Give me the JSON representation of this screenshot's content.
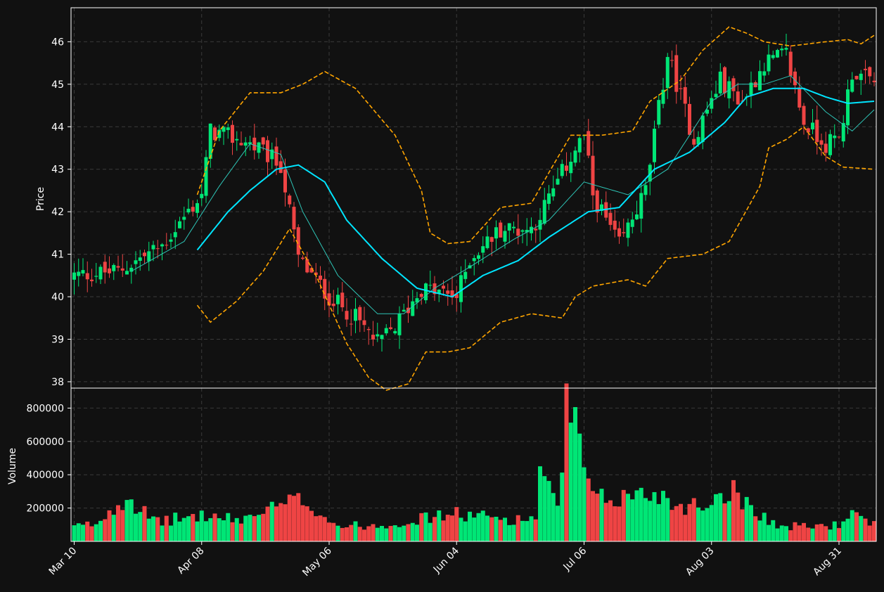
{
  "chart_data": {
    "type": "candlestick",
    "colors": {
      "background": "#111111",
      "up": "#00e676",
      "down": "#ef4444",
      "grid": "#3a3a3a",
      "axis": "#ffffff",
      "ma_fast": "#2ec4b6",
      "ma_slow": "#00e5ff",
      "bollinger": "#ffa500"
    },
    "price_panel": {
      "ylabel": "Price",
      "ylim": [
        37.85,
        46.8
      ],
      "yticks": [
        38,
        39,
        40,
        41,
        42,
        43,
        44,
        45,
        46
      ],
      "grid": true
    },
    "volume_panel": {
      "ylabel": "Volume",
      "ylim": [
        0,
        920000
      ],
      "yticks": [
        200000,
        400000,
        600000,
        800000
      ],
      "grid": true
    },
    "x_axis": {
      "tick_labels": [
        "Mar 10",
        "Apr 08",
        "May 06",
        "Jun 04",
        "Jul 06",
        "Aug 03",
        "Aug 31"
      ],
      "tick_indices": [
        0,
        29,
        58,
        87,
        116,
        145,
        174
      ],
      "label_rotation": 45,
      "grid": true
    },
    "series_count": 183,
    "key_points": {
      "close": [
        [
          0,
          40.5
        ],
        [
          10,
          40.6
        ],
        [
          20,
          41.2
        ],
        [
          29,
          42.4
        ],
        [
          31,
          43.9
        ],
        [
          40,
          43.6
        ],
        [
          47,
          43.1
        ],
        [
          51,
          40.9
        ],
        [
          58,
          40.0
        ],
        [
          64,
          39.5
        ],
        [
          69,
          38.9
        ],
        [
          73,
          39.3
        ],
        [
          79,
          40.2
        ],
        [
          87,
          40.0
        ],
        [
          90,
          40.9
        ],
        [
          97,
          41.6
        ],
        [
          104,
          41.6
        ],
        [
          108,
          42.3
        ],
        [
          113,
          43.3
        ],
        [
          116,
          43.8
        ],
        [
          118,
          42.4
        ],
        [
          124,
          41.2
        ],
        [
          130,
          42.5
        ],
        [
          135,
          45.7
        ],
        [
          141,
          43.7
        ],
        [
          147,
          45.1
        ],
        [
          152,
          44.6
        ],
        [
          157,
          45.5
        ],
        [
          162,
          45.7
        ],
        [
          166,
          44.1
        ],
        [
          171,
          43.6
        ],
        [
          174,
          43.7
        ],
        [
          177,
          45.3
        ],
        [
          182,
          45.0
        ]
      ],
      "volume": [
        [
          0,
          90000
        ],
        [
          5,
          110000
        ],
        [
          12,
          290000
        ],
        [
          18,
          120000
        ],
        [
          29,
          160000
        ],
        [
          37,
          130000
        ],
        [
          52,
          260000
        ],
        [
          60,
          95000
        ],
        [
          70,
          100000
        ],
        [
          86,
          170000
        ],
        [
          102,
          130000
        ],
        [
          105,
          160000
        ],
        [
          106,
          430000
        ],
        [
          110,
          180000
        ],
        [
          112,
          870000
        ],
        [
          118,
          250000
        ],
        [
          133,
          300000
        ],
        [
          136,
          230000
        ],
        [
          143,
          220000
        ],
        [
          149,
          330000
        ],
        [
          160,
          90000
        ],
        [
          174,
          100000
        ],
        [
          176,
          170000
        ],
        [
          182,
          100000
        ]
      ],
      "ma_fast": [
        [
          13,
          40.6
        ],
        [
          25,
          41.3
        ],
        [
          33,
          42.6
        ],
        [
          40,
          43.6
        ],
        [
          47,
          43.35
        ],
        [
          52,
          42.0
        ],
        [
          60,
          40.5
        ],
        [
          69,
          39.6
        ],
        [
          75,
          39.6
        ],
        [
          82,
          40.2
        ],
        [
          90,
          40.7
        ],
        [
          100,
          41.35
        ],
        [
          108,
          41.8
        ],
        [
          116,
          42.7
        ],
        [
          126,
          42.4
        ],
        [
          135,
          43.0
        ],
        [
          145,
          44.6
        ],
        [
          151,
          45.0
        ],
        [
          157,
          45.0
        ],
        [
          163,
          45.2
        ],
        [
          171,
          44.35
        ],
        [
          177,
          43.9
        ],
        [
          182,
          44.4
        ]
      ],
      "ma_slow": [
        [
          28,
          41.1
        ],
        [
          35,
          42.0
        ],
        [
          40,
          42.5
        ],
        [
          46,
          43.0
        ],
        [
          51,
          43.1
        ],
        [
          57,
          42.7
        ],
        [
          62,
          41.8
        ],
        [
          70,
          40.9
        ],
        [
          78,
          40.2
        ],
        [
          86,
          40.0
        ],
        [
          93,
          40.5
        ],
        [
          101,
          40.85
        ],
        [
          108,
          41.4
        ],
        [
          117,
          42.0
        ],
        [
          124,
          42.1
        ],
        [
          132,
          43.0
        ],
        [
          140,
          43.4
        ],
        [
          148,
          44.1
        ],
        [
          153,
          44.7
        ],
        [
          159,
          44.9
        ],
        [
          166,
          44.9
        ],
        [
          171,
          44.7
        ],
        [
          176,
          44.55
        ],
        [
          182,
          44.6
        ]
      ],
      "bollinger_upper": [
        [
          28,
          42.4
        ],
        [
          33,
          43.9
        ],
        [
          40,
          44.8
        ],
        [
          47,
          44.8
        ],
        [
          52,
          45.0
        ],
        [
          57,
          45.3
        ],
        [
          64,
          44.9
        ],
        [
          73,
          43.8
        ],
        [
          79,
          42.5
        ],
        [
          81,
          41.5
        ],
        [
          85,
          41.25
        ],
        [
          90,
          41.3
        ],
        [
          97,
          42.1
        ],
        [
          104,
          42.2
        ],
        [
          109,
          43.1
        ],
        [
          113,
          43.8
        ],
        [
          120,
          43.8
        ],
        [
          127,
          43.9
        ],
        [
          131,
          44.6
        ],
        [
          138,
          45.1
        ],
        [
          143,
          45.8
        ],
        [
          149,
          46.35
        ],
        [
          153,
          46.2
        ],
        [
          157,
          46.0
        ],
        [
          163,
          45.9
        ],
        [
          171,
          46.0
        ],
        [
          176,
          46.05
        ],
        [
          179,
          45.95
        ],
        [
          182,
          46.15
        ]
      ],
      "bollinger_lower": [
        [
          28,
          39.8
        ],
        [
          31,
          39.4
        ],
        [
          37,
          39.9
        ],
        [
          43,
          40.6
        ],
        [
          49,
          41.6
        ],
        [
          55,
          40.5
        ],
        [
          62,
          38.9
        ],
        [
          67,
          38.1
        ],
        [
          71,
          37.8
        ],
        [
          76,
          37.95
        ],
        [
          80,
          38.7
        ],
        [
          85,
          38.7
        ],
        [
          90,
          38.8
        ],
        [
          97,
          39.4
        ],
        [
          104,
          39.6
        ],
        [
          111,
          39.5
        ],
        [
          114,
          40.0
        ],
        [
          118,
          40.25
        ],
        [
          126,
          40.4
        ],
        [
          130,
          40.25
        ],
        [
          135,
          40.9
        ],
        [
          143,
          41.0
        ],
        [
          149,
          41.3
        ],
        [
          156,
          42.6
        ],
        [
          158,
          43.5
        ],
        [
          162,
          43.7
        ],
        [
          166,
          44.0
        ],
        [
          171,
          43.3
        ],
        [
          175,
          43.05
        ],
        [
          182,
          43.0
        ]
      ]
    }
  }
}
